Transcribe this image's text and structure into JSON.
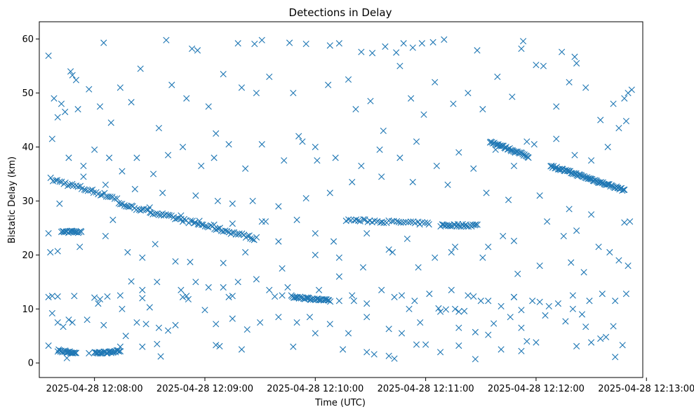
{
  "chart_data": {
    "type": "scatter",
    "title": "Detections in Delay",
    "xlabel": "Time (UTC)",
    "ylabel": "Bistatic Delay (km)",
    "marker": "x",
    "color": "#1f77b4",
    "x_unit": "seconds after 2025-04-28 12:07:30",
    "xlim": [
      0,
      328
    ],
    "ylim": [
      -2.7,
      63.2
    ],
    "xticks": [
      {
        "value": 30,
        "label": "2025-04-28 12:08:00"
      },
      {
        "value": 90,
        "label": "2025-04-28 12:09:00"
      },
      {
        "value": 150,
        "label": "2025-04-28 12:10:00"
      },
      {
        "value": 210,
        "label": "2025-04-28 12:11:00"
      },
      {
        "value": 270,
        "label": "2025-04-28 12:12:00"
      },
      {
        "value": 330,
        "label": "2025-04-28 12:13:00"
      }
    ],
    "yticks": [
      {
        "value": 0,
        "label": "0"
      },
      {
        "value": 10,
        "label": "10"
      },
      {
        "value": 20,
        "label": "20"
      },
      {
        "value": 30,
        "label": "30"
      },
      {
        "value": 40,
        "label": "40"
      },
      {
        "value": 50,
        "label": "50"
      },
      {
        "value": 60,
        "label": "60"
      }
    ],
    "tracks": [
      {
        "name": "track-a",
        "start": [
          6.5,
          34
        ],
        "end": [
          42,
          30.5
        ],
        "step": 1.1,
        "jitter": 0.35
      },
      {
        "name": "track-b",
        "start": [
          43,
          29.5
        ],
        "end": [
          118,
          23
        ],
        "step": 1.0,
        "jitter": 0.3
      },
      {
        "name": "track-c",
        "start": [
          167,
          26.5
        ],
        "end": [
          212,
          25.8
        ],
        "step": 1.3,
        "jitter": 0.25
      },
      {
        "name": "track-d",
        "start": [
          218,
          25.5
        ],
        "end": [
          238,
          25.5
        ],
        "step": 0.8,
        "jitter": 0.25
      },
      {
        "name": "track-e",
        "start": [
          245,
          41
        ],
        "end": [
          266,
          38.2
        ],
        "step": 0.55,
        "jitter": 0.2
      },
      {
        "name": "track-f",
        "start": [
          278,
          36.5
        ],
        "end": [
          318,
          32
        ],
        "step": 0.55,
        "jitter": 0.2
      },
      {
        "name": "track-g",
        "start": [
          10,
          2.3
        ],
        "end": [
          20,
          1.8
        ],
        "step": 0.5,
        "jitter": 0.2
      },
      {
        "name": "track-h",
        "start": [
          30,
          1.8
        ],
        "end": [
          44,
          2.2
        ],
        "step": 0.5,
        "jitter": 0.2
      },
      {
        "name": "track-i",
        "start": [
          137,
          12.3
        ],
        "end": [
          158,
          11.5
        ],
        "step": 0.6,
        "jitter": 0.2
      },
      {
        "name": "track-j",
        "start": [
          12,
          24.3
        ],
        "end": [
          23,
          24.3
        ],
        "step": 0.6,
        "jitter": 0.2
      }
    ],
    "points": [
      [
        5,
        56.9
      ],
      [
        17,
        54
      ],
      [
        18,
        53.3
      ],
      [
        20,
        52.4
      ],
      [
        35,
        59.3
      ],
      [
        69,
        59.8
      ],
      [
        83,
        58.2
      ],
      [
        86,
        57.9
      ],
      [
        108,
        59.2
      ],
      [
        117,
        59.1
      ],
      [
        121,
        59.8
      ],
      [
        136,
        59.3
      ],
      [
        145,
        59.1
      ],
      [
        158,
        58.8
      ],
      [
        163,
        59.2
      ],
      [
        175,
        57.6
      ],
      [
        181,
        57.4
      ],
      [
        188,
        58.6
      ],
      [
        194,
        57.5
      ],
      [
        198,
        59.2
      ],
      [
        203,
        58.4
      ],
      [
        208,
        59.2
      ],
      [
        214,
        59.4
      ],
      [
        220,
        59.9
      ],
      [
        238,
        57.9
      ],
      [
        262,
        58.2
      ],
      [
        263,
        59.6
      ],
      [
        270,
        55.2
      ],
      [
        284,
        57.6
      ],
      [
        291,
        56.7
      ],
      [
        292,
        55.5
      ],
      [
        322,
        50.6
      ],
      [
        8,
        49
      ],
      [
        10,
        45.5
      ],
      [
        12,
        48
      ],
      [
        14,
        46.5
      ],
      [
        21,
        47
      ],
      [
        27,
        50.7
      ],
      [
        33,
        47.5
      ],
      [
        39,
        44.5
      ],
      [
        44,
        51
      ],
      [
        50,
        48.3
      ],
      [
        55,
        54.5
      ],
      [
        65,
        43.5
      ],
      [
        72,
        51.5
      ],
      [
        80,
        49
      ],
      [
        92,
        47.5
      ],
      [
        96,
        42.5
      ],
      [
        100,
        53.5
      ],
      [
        110,
        51
      ],
      [
        118,
        50
      ],
      [
        125,
        53
      ],
      [
        138,
        50
      ],
      [
        141,
        42
      ],
      [
        150,
        40
      ],
      [
        157,
        51.5
      ],
      [
        168,
        52.5
      ],
      [
        172,
        47
      ],
      [
        180,
        48.5
      ],
      [
        187,
        43
      ],
      [
        196,
        55
      ],
      [
        202,
        49
      ],
      [
        209,
        46
      ],
      [
        215,
        52
      ],
      [
        225,
        48
      ],
      [
        233,
        50
      ],
      [
        241,
        47
      ],
      [
        249,
        53
      ],
      [
        257,
        49.3
      ],
      [
        265,
        41
      ],
      [
        274,
        55
      ],
      [
        281,
        47.5
      ],
      [
        288,
        52
      ],
      [
        297,
        51
      ],
      [
        305,
        45
      ],
      [
        312,
        48
      ],
      [
        318,
        49
      ],
      [
        320,
        50
      ],
      [
        7,
        41.5
      ],
      [
        16,
        38
      ],
      [
        24,
        36.5
      ],
      [
        30,
        39.5
      ],
      [
        38,
        38
      ],
      [
        45,
        35.5
      ],
      [
        53,
        38
      ],
      [
        62,
        35
      ],
      [
        70,
        38.5
      ],
      [
        78,
        40
      ],
      [
        88,
        36.5
      ],
      [
        95,
        38
      ],
      [
        103,
        40.5
      ],
      [
        112,
        36
      ],
      [
        121,
        40.5
      ],
      [
        133,
        37.5
      ],
      [
        143,
        41
      ],
      [
        151,
        37.5
      ],
      [
        161,
        38
      ],
      [
        175,
        36.5
      ],
      [
        185,
        39.5
      ],
      [
        196,
        38
      ],
      [
        205,
        41
      ],
      [
        216,
        36.5
      ],
      [
        228,
        39
      ],
      [
        236,
        36
      ],
      [
        248,
        39.5
      ],
      [
        258,
        36.5
      ],
      [
        269,
        40.5
      ],
      [
        281,
        41.5
      ],
      [
        291,
        38.5
      ],
      [
        300,
        37.5
      ],
      [
        309,
        40
      ],
      [
        315,
        43.5
      ],
      [
        319,
        44.8
      ],
      [
        24,
        34.5
      ],
      [
        36,
        33
      ],
      [
        52,
        32.2
      ],
      [
        67,
        31.5
      ],
      [
        85,
        31
      ],
      [
        97,
        30
      ],
      [
        105,
        29.5
      ],
      [
        116,
        30
      ],
      [
        130,
        29
      ],
      [
        145,
        30.5
      ],
      [
        158,
        31.5
      ],
      [
        170,
        33.5
      ],
      [
        186,
        34.5
      ],
      [
        203,
        33.5
      ],
      [
        222,
        33
      ],
      [
        243,
        31.5
      ],
      [
        255,
        30.2
      ],
      [
        272,
        31
      ],
      [
        288,
        28.5
      ],
      [
        300,
        27.5
      ],
      [
        11,
        29.5
      ],
      [
        40,
        26.5
      ],
      [
        60,
        28.8
      ],
      [
        77,
        27.3
      ],
      [
        87,
        26.3
      ],
      [
        95,
        25.6
      ],
      [
        105,
        25.8
      ],
      [
        121,
        26.2
      ],
      [
        123,
        26.2
      ],
      [
        130,
        22.5
      ],
      [
        140,
        26.5
      ],
      [
        150,
        24
      ],
      [
        160,
        22.5
      ],
      [
        178,
        24
      ],
      [
        190,
        21
      ],
      [
        200,
        23
      ],
      [
        226,
        21.5
      ],
      [
        244,
        21.5
      ],
      [
        252,
        23.5
      ],
      [
        258,
        22.6
      ],
      [
        276,
        26.2
      ],
      [
        285,
        23.5
      ],
      [
        292,
        24.5
      ],
      [
        304,
        21.5
      ],
      [
        318,
        26
      ],
      [
        321,
        26.2
      ],
      [
        5,
        24
      ],
      [
        6,
        20.5
      ],
      [
        10,
        20.7
      ],
      [
        22,
        21.5
      ],
      [
        36,
        23.5
      ],
      [
        48,
        20.5
      ],
      [
        56,
        19.5
      ],
      [
        63,
        22
      ],
      [
        74,
        18.8
      ],
      [
        82,
        18.7
      ],
      [
        100,
        18.5
      ],
      [
        112,
        20.5
      ],
      [
        132,
        17.5
      ],
      [
        150,
        20
      ],
      [
        163,
        19.5
      ],
      [
        176,
        17.7
      ],
      [
        192,
        20.5
      ],
      [
        206,
        17.7
      ],
      [
        215,
        19.5
      ],
      [
        224,
        20.5
      ],
      [
        241,
        19.5
      ],
      [
        260,
        16.5
      ],
      [
        272,
        18
      ],
      [
        289,
        18.6
      ],
      [
        296,
        16.8
      ],
      [
        310,
        20.5
      ],
      [
        315,
        19
      ],
      [
        320,
        18
      ],
      [
        50,
        15.1
      ],
      [
        56,
        13.5
      ],
      [
        60,
        10.3
      ],
      [
        64,
        15
      ],
      [
        77,
        13.5
      ],
      [
        85,
        15
      ],
      [
        92,
        14
      ],
      [
        100,
        14
      ],
      [
        108,
        15
      ],
      [
        118,
        15.5
      ],
      [
        125,
        13.5
      ],
      [
        135,
        14
      ],
      [
        152,
        13.5
      ],
      [
        163,
        16
      ],
      [
        170,
        12.5
      ],
      [
        178,
        11
      ],
      [
        186,
        13.5
      ],
      [
        197,
        12.5
      ],
      [
        204,
        11.5
      ],
      [
        212,
        12.8
      ],
      [
        224,
        13.5
      ],
      [
        233,
        12.5
      ],
      [
        244,
        11.5
      ],
      [
        251,
        10.5
      ],
      [
        258,
        12.2
      ],
      [
        268,
        11.5
      ],
      [
        277,
        10.5
      ],
      [
        290,
        12.5
      ],
      [
        299,
        11.5
      ],
      [
        306,
        12.8
      ],
      [
        313,
        11.5
      ],
      [
        319,
        12.8
      ],
      [
        5,
        12.2
      ],
      [
        7,
        12.4
      ],
      [
        10,
        12.3
      ],
      [
        19,
        12.4
      ],
      [
        30,
        12.1
      ],
      [
        33,
        11.8
      ],
      [
        37,
        12.3
      ],
      [
        44,
        12.5
      ],
      [
        56,
        12
      ],
      [
        78,
        12.2
      ],
      [
        80,
        12.4
      ],
      [
        81,
        11.8
      ],
      [
        103,
        12.2
      ],
      [
        105,
        12.4
      ],
      [
        128,
        12.3
      ],
      [
        132,
        12.5
      ],
      [
        163,
        11.5
      ],
      [
        171,
        11.5
      ],
      [
        193,
        12.2
      ],
      [
        201,
        10
      ],
      [
        217,
        10.1
      ],
      [
        221,
        9.9
      ],
      [
        226,
        10
      ],
      [
        228,
        9.5
      ],
      [
        231,
        9.6
      ],
      [
        236,
        12.3
      ],
      [
        240,
        11.5
      ],
      [
        258,
        12.2
      ],
      [
        262,
        9.8
      ],
      [
        272,
        11.3
      ],
      [
        282,
        11
      ],
      [
        290,
        10
      ],
      [
        295,
        9
      ],
      [
        7,
        9.2
      ],
      [
        10,
        7.5
      ],
      [
        13,
        6.7
      ],
      [
        16,
        8
      ],
      [
        18,
        7.5
      ],
      [
        26,
        8
      ],
      [
        32,
        11
      ],
      [
        35,
        7
      ],
      [
        45,
        10
      ],
      [
        53,
        7.5
      ],
      [
        58,
        7.2
      ],
      [
        65,
        6.5
      ],
      [
        74,
        7
      ],
      [
        90,
        9.8
      ],
      [
        96,
        7.2
      ],
      [
        105,
        8.2
      ],
      [
        113,
        6.2
      ],
      [
        120,
        7.5
      ],
      [
        130,
        8.5
      ],
      [
        140,
        7.5
      ],
      [
        147,
        8.5
      ],
      [
        158,
        7.2
      ],
      [
        168,
        5.5
      ],
      [
        178,
        8.5
      ],
      [
        190,
        6.3
      ],
      [
        197,
        5.5
      ],
      [
        207,
        7.5
      ],
      [
        218,
        9.5
      ],
      [
        228,
        6.5
      ],
      [
        237,
        5.7
      ],
      [
        247,
        7.3
      ],
      [
        256,
        8.5
      ],
      [
        262,
        6.5
      ],
      [
        275,
        8.8
      ],
      [
        286,
        7.7
      ],
      [
        297,
        6.7
      ],
      [
        305,
        4.5
      ],
      [
        312,
        6.8
      ],
      [
        5,
        3.2
      ],
      [
        27,
        1.8
      ],
      [
        44,
        3
      ],
      [
        47,
        5
      ],
      [
        56,
        3
      ],
      [
        64,
        3.5
      ],
      [
        70,
        6
      ],
      [
        96,
        3.3
      ],
      [
        98,
        3.1
      ],
      [
        110,
        2.5
      ],
      [
        138,
        3
      ],
      [
        150,
        5.5
      ],
      [
        165,
        2.5
      ],
      [
        178,
        2
      ],
      [
        182,
        1.6
      ],
      [
        190,
        1.3
      ],
      [
        193,
        0.8
      ],
      [
        205,
        3.4
      ],
      [
        210,
        3.4
      ],
      [
        218,
        2
      ],
      [
        228,
        3.2
      ],
      [
        237,
        0.7
      ],
      [
        244,
        5.2
      ],
      [
        251,
        2.5
      ],
      [
        262,
        2.2
      ],
      [
        265,
        4
      ],
      [
        270,
        3.8
      ],
      [
        292,
        3.1
      ],
      [
        300,
        3.8
      ],
      [
        308,
        4.8
      ],
      [
        313,
        1.1
      ],
      [
        317,
        3.3
      ],
      [
        66,
        1.2
      ],
      [
        15,
        0.9
      ]
    ]
  }
}
